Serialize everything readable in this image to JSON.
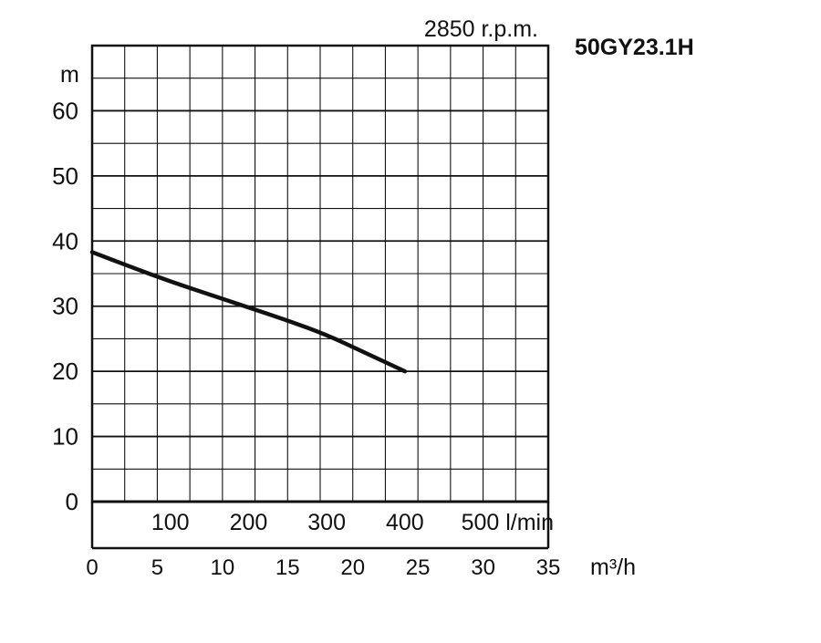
{
  "chart_data": {
    "type": "line",
    "title": "50GY23.1H",
    "subtitle": "2850 r.p.m.",
    "ylabel": "m",
    "xlabel": "m³/h",
    "secondary_xlabel": "l/min",
    "ylim": [
      0,
      70
    ],
    "xlim": [
      0,
      35
    ],
    "yticks": [
      0,
      10,
      20,
      30,
      40,
      50,
      60
    ],
    "xticks": [
      0,
      5,
      10,
      15,
      20,
      25,
      30,
      35
    ],
    "secondary_xticks": [
      100,
      200,
      300,
      400,
      500
    ],
    "grid": true,
    "series": [
      {
        "x": [
          0,
          3,
          6,
          9,
          12,
          15,
          18,
          21,
          24
        ],
        "y": [
          38.3,
          36.0,
          33.8,
          31.8,
          29.8,
          27.8,
          25.6,
          22.8,
          20.0
        ]
      }
    ]
  },
  "labels": {
    "title": "50GY23.1H",
    "subtitle": "2850 r.p.m.",
    "ylabel": "m",
    "xlabel": "m³/h",
    "lmin_last": "500 l/min",
    "lmin_ticks": [
      "100",
      "200",
      "300",
      "400"
    ]
  }
}
